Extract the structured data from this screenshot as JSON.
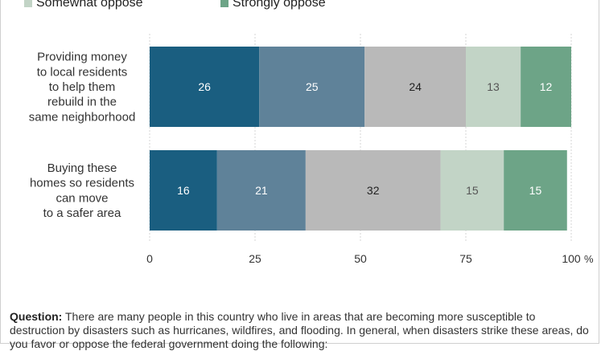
{
  "chart_data": {
    "type": "bar",
    "orientation": "horizontal",
    "stacked": true,
    "categories": [
      "Providing money to local residents to help them rebuild in the same neighborhood",
      "Buying these homes so residents can move to a safer area"
    ],
    "category_lines": [
      [
        "Providing money",
        "to local residents",
        "to help them",
        "rebuild in the",
        "same neighborhood"
      ],
      [
        "Buying these",
        "homes so residents",
        "can move",
        "to a safer area"
      ]
    ],
    "series": [
      {
        "name": "",
        "color": "#1a5e80",
        "values": [
          26,
          16
        ]
      },
      {
        "name": "",
        "color": "#5f8299",
        "values": [
          25,
          21
        ]
      },
      {
        "name": "",
        "color": "#b9b9b9",
        "values": [
          24,
          32
        ]
      },
      {
        "name": "Somewhat oppose",
        "color": "#c2d4c6",
        "values": [
          13,
          15
        ]
      },
      {
        "name": "Strongly oppose",
        "color": "#6da487",
        "values": [
          12,
          15
        ]
      }
    ],
    "xticks": [
      "0",
      "25",
      "50",
      "75",
      "100"
    ],
    "xunit": "%",
    "xlim": [
      0,
      100
    ],
    "grid": true,
    "legend_position": "top",
    "title": "",
    "xlabel": "",
    "ylabel": ""
  },
  "legend_visible": [
    {
      "label": "Somewhat oppose",
      "color": "#c2d4c6"
    },
    {
      "label": "Strongly oppose",
      "color": "#6da487"
    }
  ],
  "note": {
    "label": "Question:",
    "text": " There are many people in this country who live in areas that are becoming more susceptible to destruction by disasters such as hurricanes, wildfires, and flooding. In general, when disasters strike these areas, do you favor or oppose the federal government doing the following:"
  }
}
